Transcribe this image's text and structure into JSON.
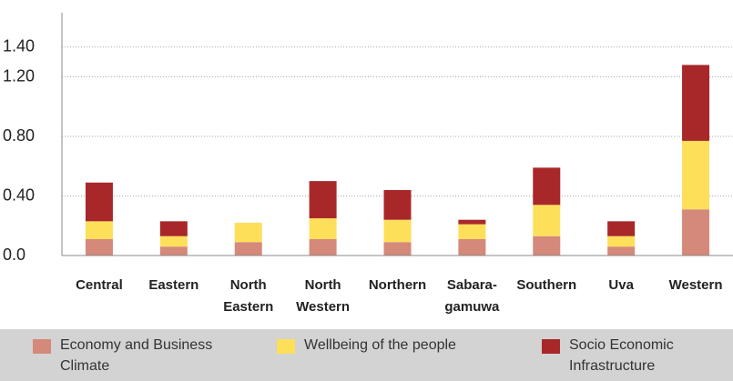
{
  "chart_data": {
    "type": "stacked-bar",
    "categories": [
      "Central",
      "Eastern",
      "North Eastern",
      "North Western",
      "Northern",
      "Sabara-gamuwa",
      "Southern",
      "Uva",
      "Western"
    ],
    "series": [
      {
        "name": "Economy and Business Climate",
        "color": "#d4897a",
        "values": [
          0.11,
          0.06,
          0.09,
          0.11,
          0.09,
          0.11,
          0.13,
          0.06,
          0.31
        ]
      },
      {
        "name": "Wellbeing of the people",
        "color": "#fddf5a",
        "values": [
          0.12,
          0.07,
          0.13,
          0.14,
          0.15,
          0.1,
          0.21,
          0.07,
          0.46
        ]
      },
      {
        "name": "Socio Economic Infrastructure",
        "color": "#a8282a",
        "values": [
          0.26,
          0.1,
          0,
          0.25,
          0.2,
          0.03,
          0.25,
          0.1,
          0.51
        ]
      }
    ],
    "ylim": [
      0,
      1.6
    ],
    "yticks": [
      {
        "value": 0,
        "label": "0.0"
      },
      {
        "value": 0.4,
        "label": "0.40"
      },
      {
        "value": 0.8,
        "label": "0.80"
      },
      {
        "value": 1.2,
        "label": "1.20"
      },
      {
        "value": 1.4,
        "label": "1.40"
      }
    ],
    "grid": true
  }
}
